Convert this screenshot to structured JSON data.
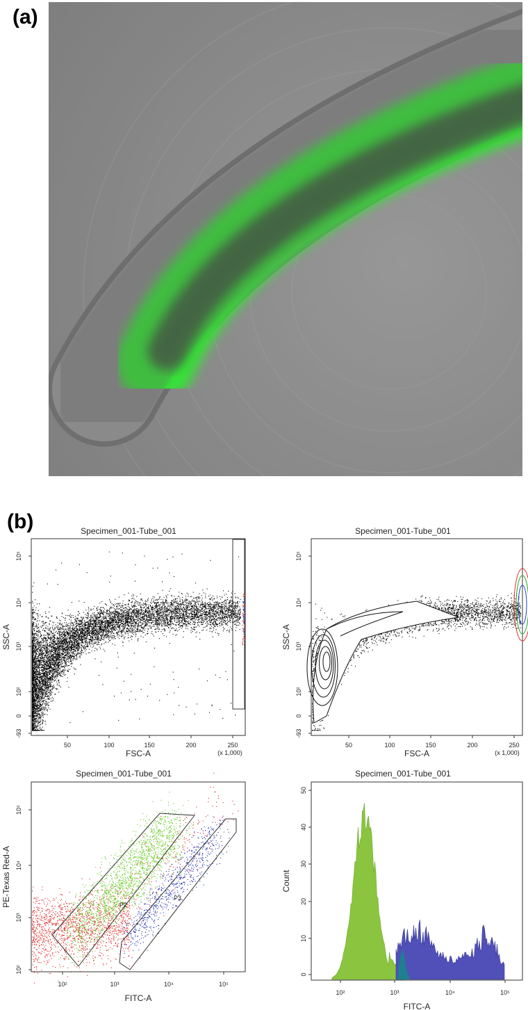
{
  "panels": [
    {
      "label": "(a)"
    },
    {
      "label": "(b)"
    }
  ],
  "plots": [
    {
      "title": "Specimen_001-Tube_001",
      "x_label": "FSC-A",
      "y_label": "SSC-A",
      "x_ticks": [
        "50",
        "100",
        "150",
        "200",
        "250"
      ],
      "x_unit": "(x 1,000)",
      "y_ticks": [
        "10⁵",
        "10⁴",
        "10³",
        "10²",
        "0",
        "-93"
      ]
    },
    {
      "title": "Specimen_001-Tube_001",
      "x_label": "FSC-A",
      "y_label": "SSC-A",
      "x_ticks": [
        "50",
        "100",
        "150",
        "200",
        "250"
      ],
      "x_unit": "(x 1,000)",
      "y_ticks": [
        "10⁵",
        "10⁴",
        "10³",
        "10²",
        "0",
        "-93"
      ]
    },
    {
      "title": "Specimen_001-Tube_001",
      "x_label": "FITC-A",
      "y_label": "PE-Texas Red-A",
      "x_ticks": [
        "10²",
        "10³",
        "10⁴",
        "10⁵"
      ],
      "y_ticks": [
        "10⁵",
        "10⁴",
        "10³",
        "10²"
      ],
      "gates": [
        "P2",
        "P3"
      ]
    },
    {
      "title": "Specimen_001-Tube_001",
      "x_label": "FITC-A",
      "y_label": "Count",
      "x_ticks": [
        "10²",
        "10³",
        "10⁴",
        "10⁵"
      ],
      "y_ticks": [
        "50",
        "40",
        "30",
        "20",
        "10",
        "0"
      ]
    }
  ]
}
